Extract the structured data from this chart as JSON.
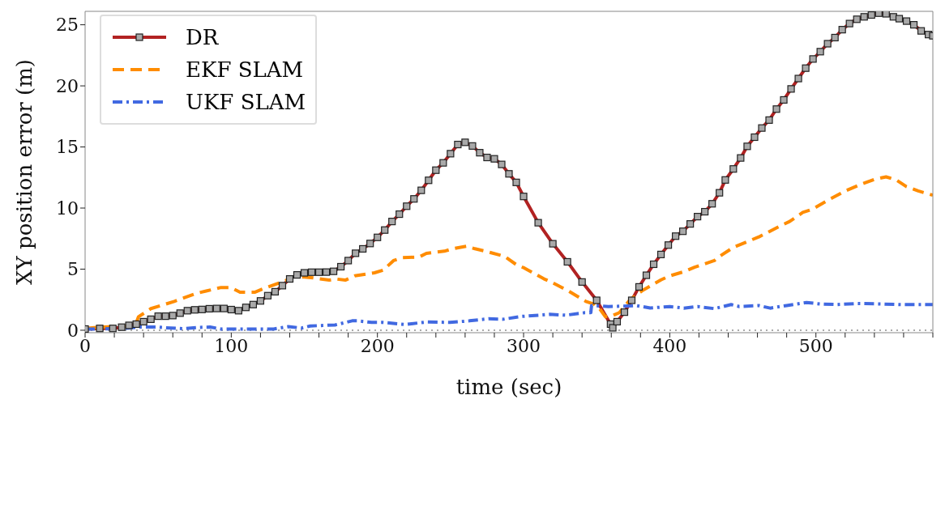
{
  "chart_data": {
    "type": "line",
    "xlabel": "time (sec)",
    "ylabel": "XY position error (m)",
    "xlim": [
      0,
      580
    ],
    "ylim": [
      -0.2,
      26.1
    ],
    "xticks": [
      0,
      {
        "value": 20,
        "label": null
      },
      {
        "value": 40,
        "label": null
      },
      {
        "value": 60,
        "label": null
      },
      {
        "value": 80,
        "label": null
      },
      100,
      {
        "value": 120,
        "label": null
      },
      {
        "value": 140,
        "label": null
      },
      {
        "value": 160,
        "label": null
      },
      {
        "value": 180,
        "label": null
      },
      200,
      {
        "value": 220,
        "label": null
      },
      {
        "value": 240,
        "label": null
      },
      {
        "value": 260,
        "label": null
      },
      {
        "value": 280,
        "label": null
      },
      300,
      {
        "value": 320,
        "label": null
      },
      {
        "value": 340,
        "label": null
      },
      {
        "value": 360,
        "label": null
      },
      {
        "value": 380,
        "label": null
      },
      400,
      {
        "value": 420,
        "label": null
      },
      {
        "value": 440,
        "label": null
      },
      {
        "value": 460,
        "label": null
      },
      {
        "value": 480,
        "label": null
      },
      500,
      {
        "value": 520,
        "label": null
      },
      {
        "value": 540,
        "label": null
      },
      {
        "value": 560,
        "label": null
      },
      {
        "value": 580,
        "label": null
      }
    ],
    "yticks": [
      0,
      5,
      10,
      15,
      20,
      25
    ],
    "grid": false,
    "legend": "top left",
    "ref_lines": [
      {
        "axis": "y",
        "value": 0,
        "color": "#555555",
        "line_style": "dotted"
      }
    ],
    "series": [
      {
        "name": "DR",
        "color": "#b22222",
        "marker": "square",
        "line_style": "solid",
        "x": [
          0,
          10,
          19,
          25,
          30,
          35,
          40,
          45,
          50,
          55,
          60,
          65,
          70,
          75,
          80,
          85,
          90,
          95,
          100,
          105,
          110,
          115,
          120,
          125,
          130,
          135,
          140,
          145,
          150,
          155,
          160,
          165,
          170,
          175,
          180,
          185,
          190,
          195,
          200,
          205,
          210,
          215,
          220,
          225,
          230,
          235,
          240,
          245,
          250,
          255,
          260,
          265,
          270,
          275,
          280,
          285,
          290,
          295,
          300,
          310,
          320,
          330,
          340,
          350,
          359.5,
          361,
          364,
          369,
          374,
          379,
          384,
          389,
          394,
          399,
          404,
          409,
          414,
          419,
          424,
          429,
          434,
          438,
          443.5,
          448.5,
          453,
          458,
          463,
          468,
          473,
          478,
          483,
          488,
          493,
          498,
          503,
          508,
          513,
          518,
          523,
          528,
          533,
          538,
          543,
          548,
          553,
          557,
          562,
          567,
          572,
          577,
          580
        ],
        "values": [
          0.1,
          0.15,
          0.15,
          0.25,
          0.4,
          0.5,
          0.7,
          0.9,
          1.15,
          1.15,
          1.2,
          1.4,
          1.6,
          1.67,
          1.7,
          1.76,
          1.78,
          1.78,
          1.69,
          1.6,
          1.87,
          2.1,
          2.4,
          2.83,
          3.15,
          3.65,
          4.2,
          4.53,
          4.7,
          4.75,
          4.75,
          4.76,
          4.82,
          5.2,
          5.7,
          6.3,
          6.66,
          7.1,
          7.6,
          8.2,
          8.9,
          9.5,
          10.15,
          10.75,
          11.45,
          12.27,
          13.1,
          13.7,
          14.45,
          15.2,
          15.38,
          15.08,
          14.53,
          14.14,
          14.03,
          13.57,
          12.8,
          12.1,
          10.95,
          8.8,
          7.08,
          5.6,
          3.95,
          2.45,
          0.5,
          0.2,
          0.7,
          1.48,
          2.45,
          3.55,
          4.5,
          5.4,
          6.2,
          6.97,
          7.7,
          8.1,
          8.7,
          9.3,
          9.7,
          10.35,
          11.25,
          12.3,
          13.2,
          14.1,
          15.05,
          15.8,
          16.55,
          17.2,
          18.1,
          18.85,
          19.75,
          20.6,
          21.45,
          22.2,
          22.8,
          23.45,
          23.95,
          24.6,
          25.1,
          25.45,
          25.65,
          25.8,
          25.95,
          25.9,
          25.65,
          25.5,
          25.3,
          25.0,
          24.5,
          24.2,
          24.1
        ]
      },
      {
        "name": "EKF SLAM",
        "color": "#ff8c00",
        "marker": "none",
        "line_style": "dashed",
        "x": [
          0,
          10,
          20,
          30,
          35,
          36.5,
          45,
          61,
          76.5,
          93,
          99.6,
          106,
          116,
          123.5,
          137,
          142.5,
          150,
          156,
          167,
          172,
          178,
          184.5,
          198,
          204,
          211,
          217,
          228.5,
          233.5,
          245.7,
          251.5,
          261,
          266.7,
          274,
          287,
          295,
          300.6,
          314,
          318,
          331,
          342.6,
          348,
          352,
          356,
          360.6,
          365.5,
          373,
          381.7,
          394,
          400,
          409.6,
          417,
          430.5,
          433,
          443.8,
          461,
          476,
          482,
          491,
          497.4,
          507,
          520,
          530,
          540,
          548,
          555,
          562,
          570,
          580
        ],
        "values": [
          0.15,
          0.25,
          0.3,
          0.35,
          0.6,
          1.1,
          1.77,
          2.36,
          3.03,
          3.5,
          3.5,
          3.11,
          3.11,
          3.47,
          4.05,
          4.37,
          4.36,
          4.29,
          4.1,
          4.19,
          4.1,
          4.45,
          4.7,
          4.92,
          5.7,
          5.94,
          5.99,
          6.29,
          6.47,
          6.67,
          6.88,
          6.67,
          6.47,
          6.04,
          5.37,
          5.09,
          4.2,
          4.0,
          3.19,
          2.36,
          2.14,
          1.77,
          1.1,
          1.18,
          1.44,
          2.52,
          3.28,
          4.12,
          4.45,
          4.79,
          5.16,
          5.7,
          5.96,
          6.8,
          7.64,
          8.56,
          8.9,
          9.64,
          9.89,
          10.56,
          11.4,
          11.9,
          12.35,
          12.55,
          12.3,
          11.75,
          11.4,
          11.05
        ]
      },
      {
        "name": "UKF SLAM",
        "color": "#4169e1",
        "marker": "none",
        "line_style": "dashdot",
        "x": [
          0,
          10,
          30,
          37.6,
          49,
          54.5,
          68,
          78,
          85.5,
          93,
          106,
          118,
          129,
          139,
          148,
          154,
          171,
          182.7,
          186.5,
          196,
          203.7,
          219,
          234,
          249.6,
          263,
          276,
          286,
          298.6,
          317.8,
          329,
          342,
          346,
          346.5,
          358,
          367,
          377,
          386.6,
          400,
          409.6,
          419,
          430.5,
          442,
          447.6,
          461,
          468.7,
          480,
          493.6,
          503,
          514.6,
          528,
          545,
          558.4,
          580
        ],
        "values": [
          0.1,
          0.1,
          0.18,
          0.26,
          0.26,
          0.21,
          0.13,
          0.23,
          0.26,
          0.1,
          0.1,
          0.1,
          0.1,
          0.3,
          0.18,
          0.35,
          0.43,
          0.77,
          0.77,
          0.64,
          0.64,
          0.47,
          0.68,
          0.64,
          0.77,
          0.94,
          0.9,
          1.13,
          1.3,
          1.23,
          1.44,
          1.44,
          2.02,
          1.94,
          1.97,
          2.02,
          1.82,
          1.94,
          1.81,
          1.94,
          1.77,
          2.1,
          1.94,
          2.02,
          1.81,
          2.02,
          2.27,
          2.15,
          2.1,
          2.19,
          2.15,
          2.1,
          2.1
        ]
      }
    ]
  }
}
